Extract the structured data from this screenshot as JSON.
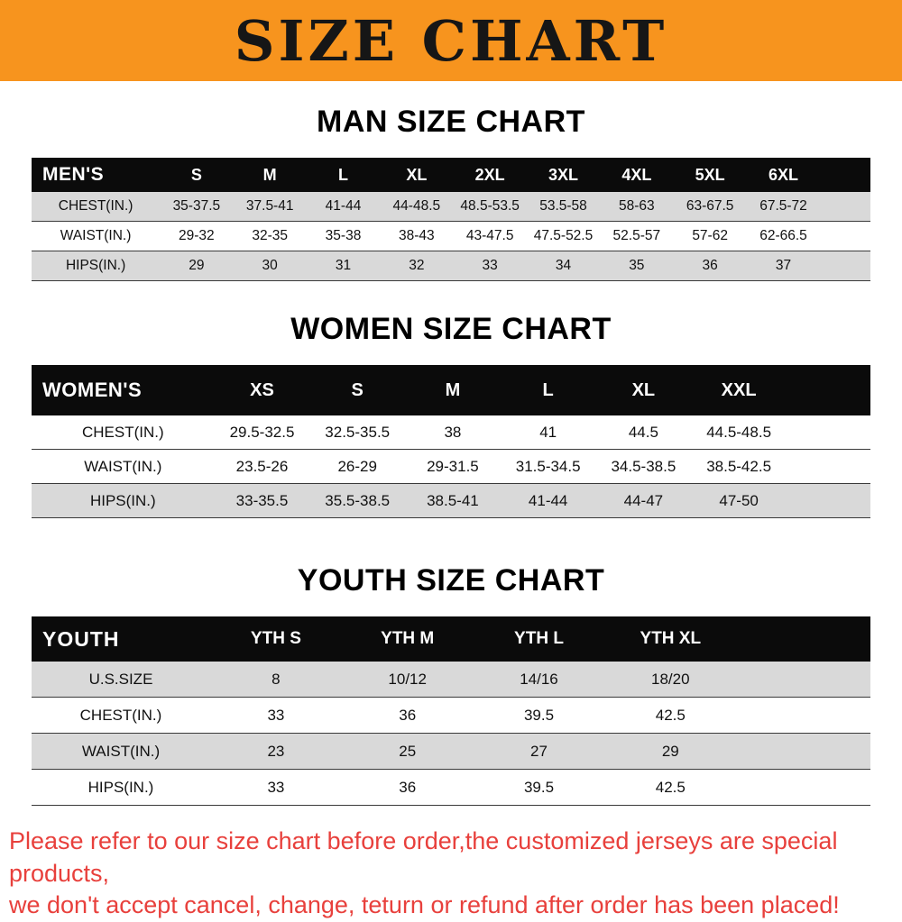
{
  "banner": {
    "title": "SIZE CHART"
  },
  "colors": {
    "banner_bg": "#f7941e",
    "header_bg": "#0b0b0b",
    "stripe": "#d9d9d9",
    "footer_text": "#e8403c"
  },
  "tables": {
    "men": {
      "title": "MAN SIZE CHART",
      "header": [
        "MEN'S",
        "S",
        "M",
        "L",
        "XL",
        "2XL",
        "3XL",
        "4XL",
        "5XL",
        "6XL"
      ],
      "rows": [
        [
          "CHEST(IN.)",
          "35-37.5",
          "37.5-41",
          "41-44",
          "44-48.5",
          "48.5-53.5",
          "53.5-58",
          "58-63",
          "63-67.5",
          "67.5-72"
        ],
        [
          "WAIST(IN.)",
          "29-32",
          "32-35",
          "35-38",
          "38-43",
          "43-47.5",
          "47.5-52.5",
          "52.5-57",
          "57-62",
          "62-66.5"
        ],
        [
          "HIPS(IN.)",
          "29",
          "30",
          "31",
          "32",
          "33",
          "34",
          "35",
          "36",
          "37"
        ]
      ]
    },
    "women": {
      "title": "WOMEN SIZE CHART",
      "header": [
        "WOMEN'S",
        "XS",
        "S",
        "M",
        "L",
        "XL",
        "XXL"
      ],
      "rows": [
        [
          "CHEST(IN.)",
          "29.5-32.5",
          "32.5-35.5",
          "38",
          "41",
          "44.5",
          "44.5-48.5"
        ],
        [
          "WAIST(IN.)",
          "23.5-26",
          "26-29",
          "29-31.5",
          "31.5-34.5",
          "34.5-38.5",
          "38.5-42.5"
        ],
        [
          "HIPS(IN.)",
          "33-35.5",
          "35.5-38.5",
          "38.5-41",
          "41-44",
          "44-47",
          "47-50"
        ]
      ]
    },
    "youth": {
      "title": "YOUTH SIZE CHART",
      "header": [
        "YOUTH",
        "YTH S",
        "YTH M",
        "YTH L",
        "YTH XL"
      ],
      "rows": [
        [
          "U.S.SIZE",
          "8",
          "10/12",
          "14/16",
          "18/20"
        ],
        [
          "CHEST(IN.)",
          "33",
          "36",
          "39.5",
          "42.5"
        ],
        [
          "WAIST(IN.)",
          "23",
          "25",
          "27",
          "29"
        ],
        [
          "HIPS(IN.)",
          "33",
          "36",
          "39.5",
          "42.5"
        ]
      ]
    }
  },
  "footer": {
    "line1": "Please refer to our size chart before order,the customized jerseys are special products,",
    "line2": "we don't accept cancel, change, teturn or refund after order has been placed!"
  }
}
